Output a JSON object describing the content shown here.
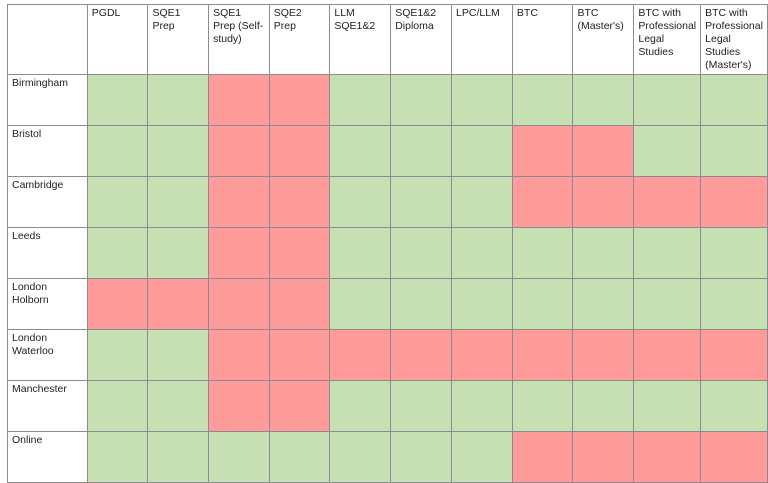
{
  "columns": [
    "PGDL",
    "SQE1 Prep",
    "SQE1 Prep (Self-study)",
    "SQE2 Prep",
    "LLM SQE1&2",
    "SQE1&2 Diploma",
    "LPC/LLM",
    "BTC",
    "BTC (Master's)",
    "BTC with Professional Legal Studies",
    "BTC with Professional Legal Studies (Master's)"
  ],
  "rows": [
    {
      "location": "Birmingham",
      "available": [
        1,
        1,
        0,
        0,
        1,
        1,
        1,
        1,
        1,
        1,
        1
      ]
    },
    {
      "location": "Bristol",
      "available": [
        1,
        1,
        0,
        0,
        1,
        1,
        1,
        0,
        0,
        1,
        1
      ]
    },
    {
      "location": "Cambridge",
      "available": [
        1,
        1,
        0,
        0,
        1,
        1,
        1,
        0,
        0,
        0,
        0
      ]
    },
    {
      "location": "Leeds",
      "available": [
        1,
        1,
        0,
        0,
        1,
        1,
        1,
        1,
        1,
        1,
        1
      ]
    },
    {
      "location": "London Holborn",
      "available": [
        0,
        0,
        0,
        0,
        1,
        1,
        1,
        1,
        1,
        1,
        1
      ]
    },
    {
      "location": "London Waterloo",
      "available": [
        1,
        1,
        0,
        0,
        0,
        0,
        0,
        0,
        0,
        0,
        0
      ]
    },
    {
      "location": "Manchester",
      "available": [
        1,
        1,
        0,
        0,
        1,
        1,
        1,
        1,
        1,
        1,
        1
      ]
    },
    {
      "location": "Online",
      "available": [
        1,
        1,
        1,
        1,
        1,
        1,
        1,
        0,
        0,
        0,
        0
      ]
    }
  ],
  "colors": {
    "available": "#c6e0b4",
    "unavailable": "#ff9b9b"
  }
}
